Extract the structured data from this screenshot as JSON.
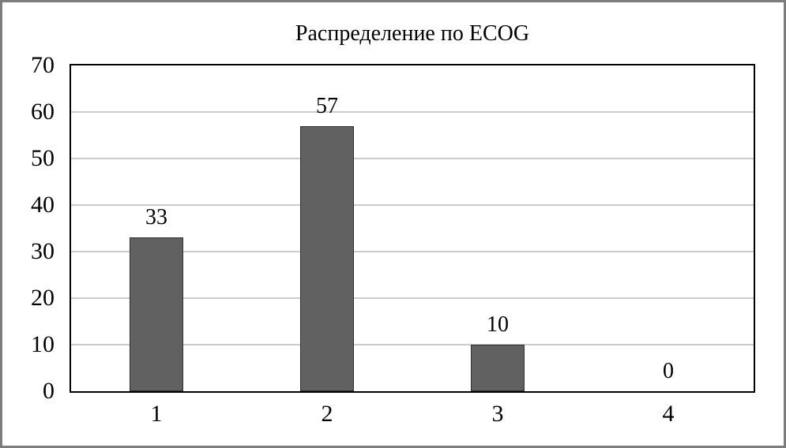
{
  "chart_data": {
    "type": "bar",
    "title": "Распределение по ECOG",
    "categories": [
      "1",
      "2",
      "3",
      "4"
    ],
    "values": [
      33,
      57,
      10,
      0
    ],
    "value_labels": [
      "33",
      "57",
      "10",
      "0"
    ],
    "ylim": [
      0,
      70
    ],
    "yticks": [
      0,
      10,
      20,
      30,
      40,
      50,
      60,
      70
    ],
    "grid": true,
    "legend": "none",
    "xlabel": "",
    "ylabel": "",
    "colors": {
      "bar_fill": "#616161",
      "bar_border": "#2f2f2f",
      "gridline": "#cccccc",
      "plot_border": "#000000",
      "outer_frame_border": "#7d7d7d",
      "background": "#ffffff",
      "text": "#000000"
    }
  }
}
